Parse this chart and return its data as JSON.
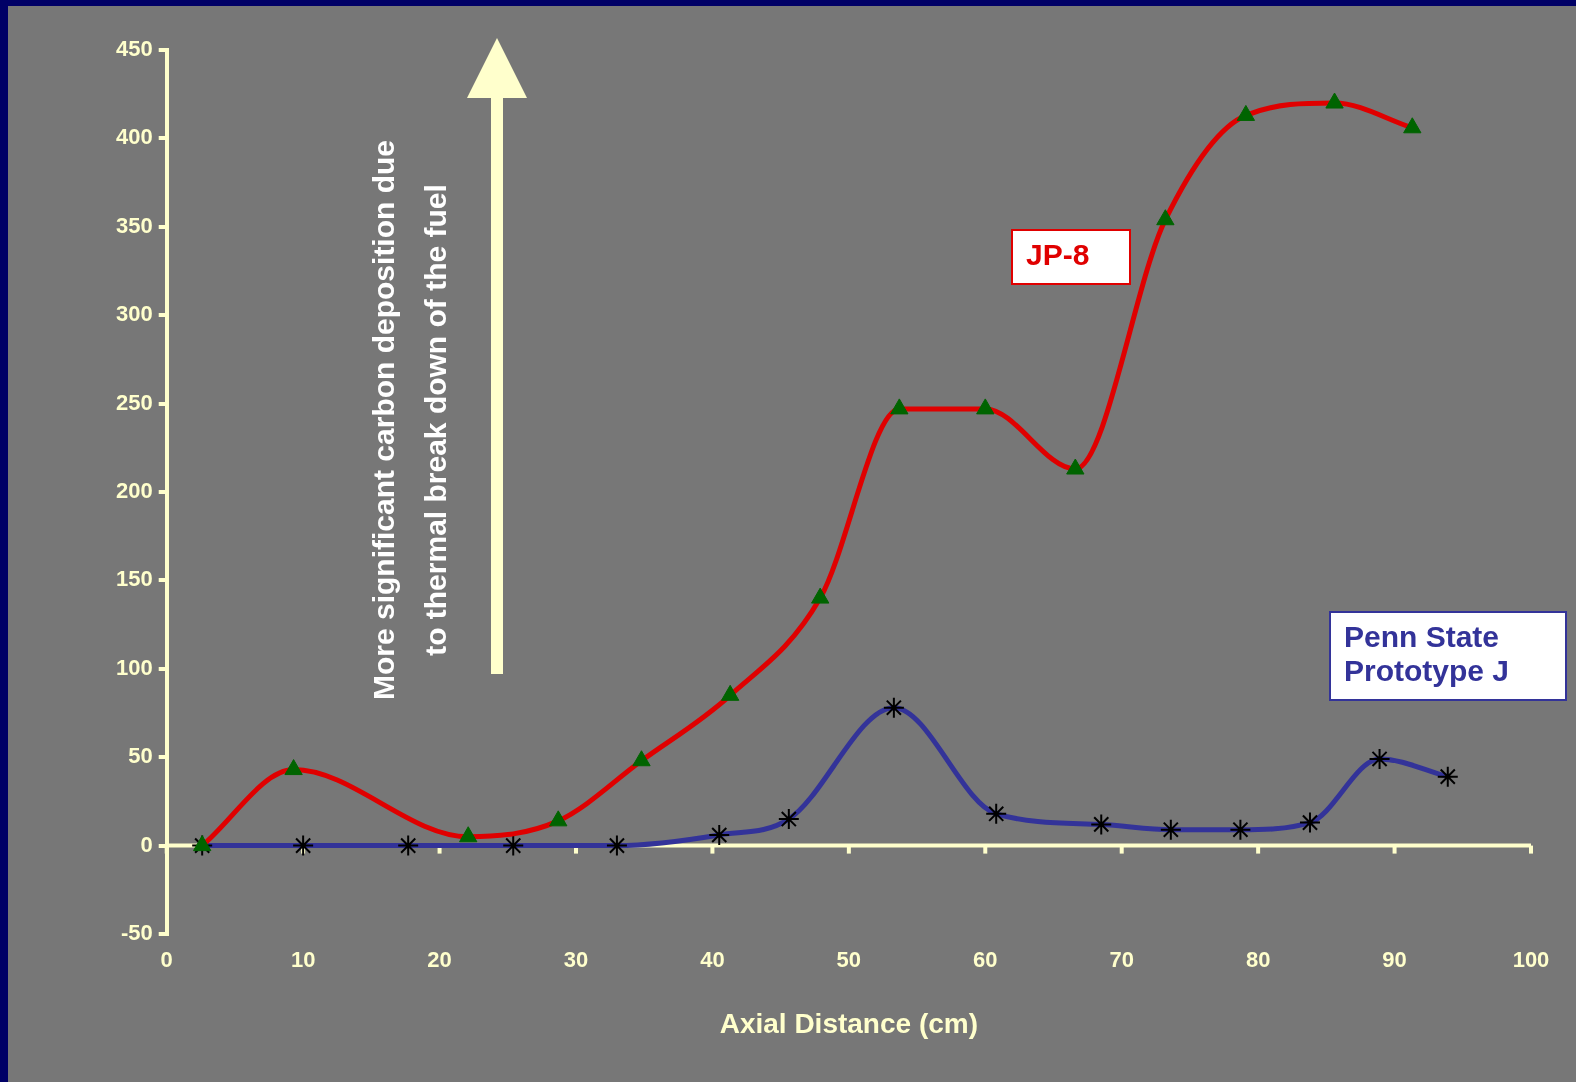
{
  "chart_data": {
    "type": "line",
    "xlabel": "Axial Distance (cm)",
    "annotations": [
      "More significant carbon deposition due to thermal break down of the fuel"
    ],
    "xlim": [
      0,
      100
    ],
    "xticks": [
      0,
      10,
      20,
      30,
      40,
      50,
      60,
      70,
      80,
      90,
      100
    ],
    "ylim": [
      -50,
      450
    ],
    "yticks": [
      -50,
      0,
      50,
      100,
      150,
      200,
      250,
      300,
      350,
      400,
      450
    ],
    "grid": false,
    "legend": false,
    "ref_lines": [
      {
        "axis": "y",
        "value": 0,
        "color": "#ffffcc"
      }
    ],
    "series": [
      {
        "name": "JP-8",
        "color": "#e00000",
        "marker": "triangle",
        "colors": [
          "#006400",
          "#006400",
          "#006400",
          "#006400",
          "#006400",
          "#006400",
          "#006400",
          "#006400",
          "#006400",
          "#006400",
          "#006400",
          "#006400",
          "#006400",
          "#006400"
        ],
        "x": [
          2.6,
          9.3,
          22.1,
          28.7,
          34.8,
          41.3,
          47.9,
          53.7,
          60,
          66.6,
          73.2,
          79.1,
          85.6,
          91.3
        ],
        "values": [
          0,
          43,
          5,
          14,
          48,
          85,
          140,
          247,
          247,
          213,
          354,
          413,
          420,
          406
        ]
      },
      {
        "name": "Penn State Prototype J",
        "color": "#333399",
        "marker": "cross",
        "colors": [
          "#000000",
          "#000000",
          "#000000",
          "#000000",
          "#000000",
          "#000000",
          "#000000",
          "#000000",
          "#000000",
          "#000000",
          "#000000",
          "#000000",
          "#000000",
          "#000000",
          "#000000"
        ],
        "x": [
          2.6,
          10,
          17.7,
          25.4,
          33,
          40.5,
          45.6,
          53.3,
          60.8,
          68.5,
          73.6,
          78.7,
          83.8,
          88.9,
          93.9
        ],
        "values": [
          0,
          0,
          0,
          0,
          0,
          6,
          15,
          78,
          18,
          12,
          9,
          9,
          13,
          49,
          39
        ]
      }
    ]
  }
}
